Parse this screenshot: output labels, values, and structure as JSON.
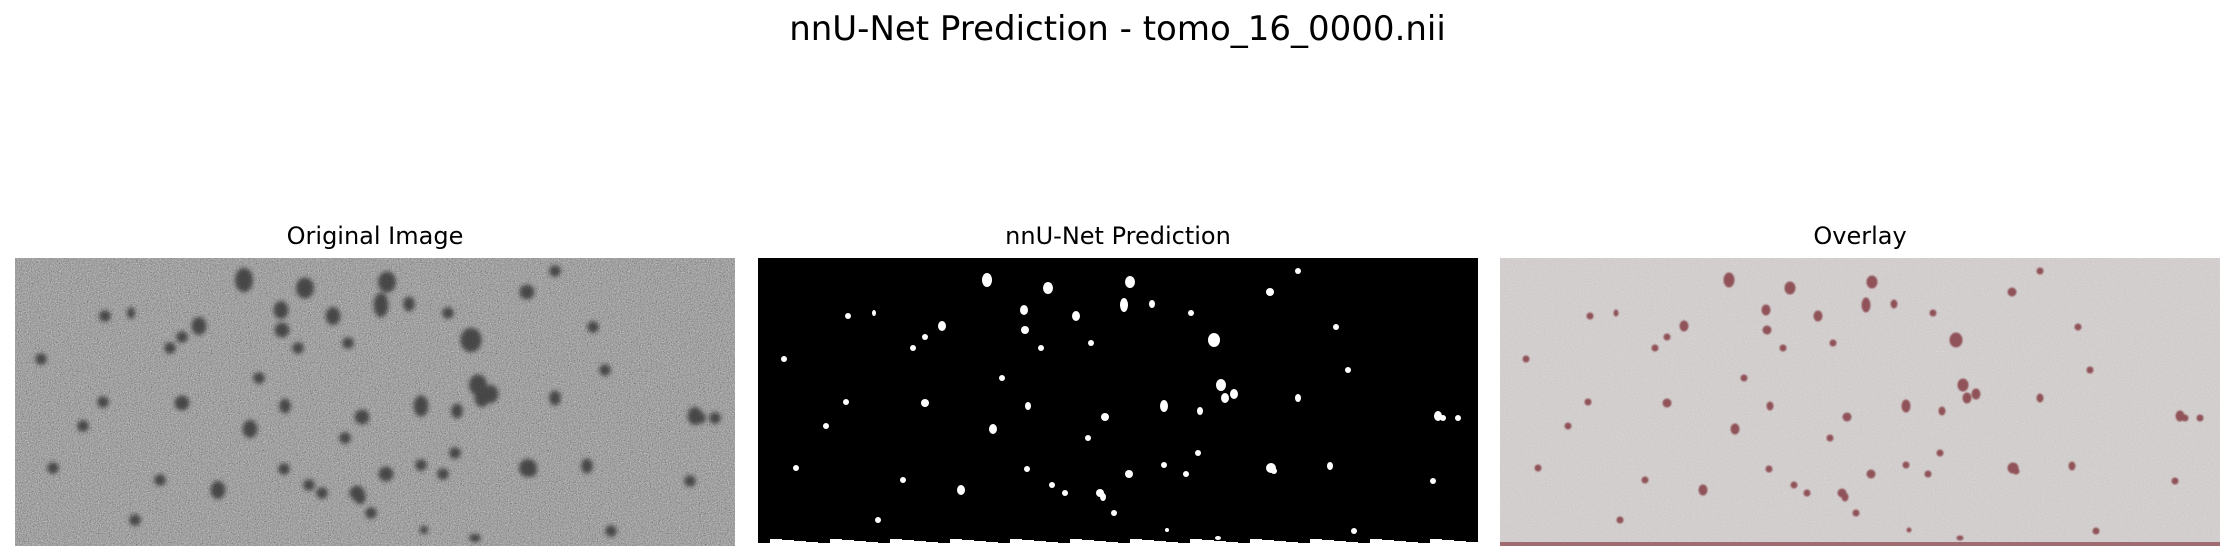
{
  "figure": {
    "title": "nnU-Net Prediction - tomo_16_0000.nii"
  },
  "panels": [
    {
      "title": "Original Image"
    },
    {
      "title": "nnU-Net Prediction"
    },
    {
      "title": "Overlay"
    }
  ],
  "colors": {
    "background": "#ffffff",
    "noise_gray": "#8f8f8f",
    "mask_fg": "#ffffff",
    "mask_bg": "#000000",
    "overlay_base": "#c9c4c4",
    "overlay_tint": "#7a2a32"
  }
}
